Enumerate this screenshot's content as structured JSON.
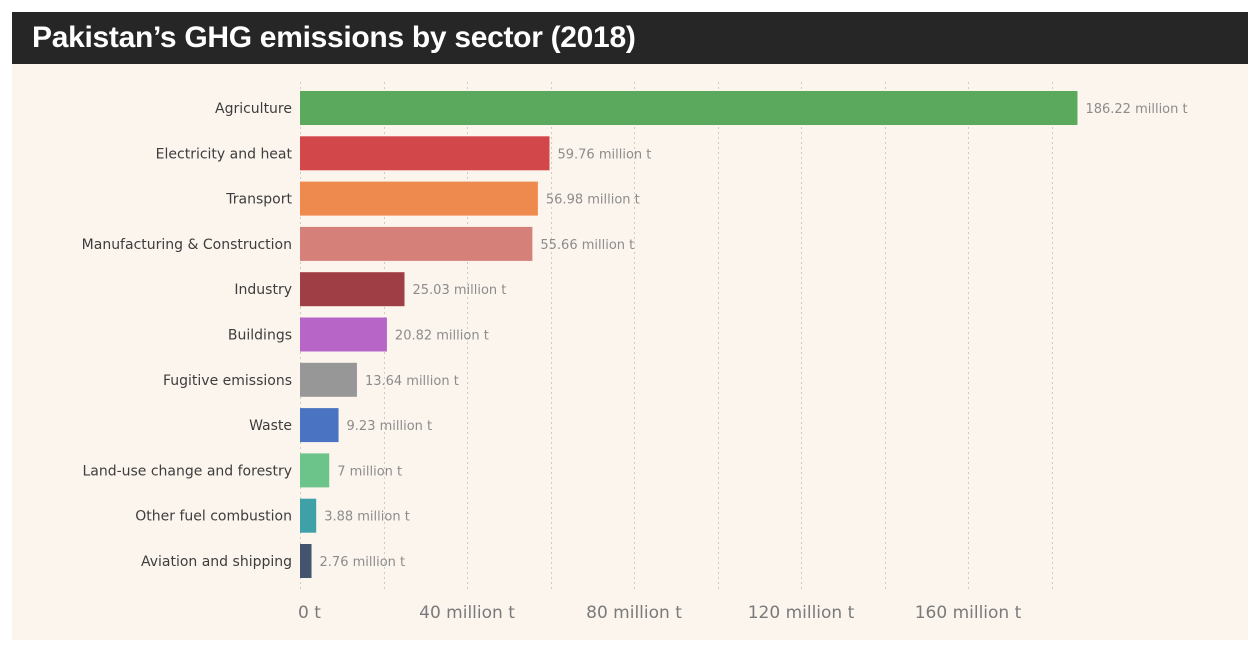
{
  "header": {
    "title": "Pakistan’s GHG emissions by sector (2018)"
  },
  "colors": {
    "title_bg": "#262626",
    "panel_bg": "#fcf5ee"
  },
  "chart_data": {
    "type": "bar",
    "orientation": "horizontal",
    "title": "Pakistan’s GHG emissions by sector (2018)",
    "xlabel": "",
    "ylabel": "",
    "unit": "million t",
    "xlim": [
      0,
      180
    ],
    "grid": true,
    "categories": [
      "Agriculture",
      "Electricity and heat",
      "Transport",
      "Manufacturing & Construction",
      "Industry",
      "Buildings",
      "Fugitive emissions",
      "Waste",
      "Land-use change and forestry",
      "Other fuel combustion",
      "Aviation and shipping"
    ],
    "values": [
      186.22,
      59.76,
      56.98,
      55.66,
      25.03,
      20.82,
      13.64,
      9.23,
      7,
      3.88,
      2.76
    ],
    "value_labels": [
      "186.22 million t",
      "59.76 million t",
      "56.98 million t",
      "55.66 million t",
      "25.03 million t",
      "20.82 million t",
      "13.64 million t",
      "9.23 million t",
      "7 million t",
      "3.88 million t",
      "2.76 million t"
    ],
    "bar_colors": [
      "#5aa95d",
      "#d2484a",
      "#ee8a4e",
      "#d6807a",
      "#a03e45",
      "#b766c8",
      "#979797",
      "#4a74c2",
      "#6cc48a",
      "#3ea1a8",
      "#44536e"
    ],
    "x_ticks": [
      {
        "value": 0,
        "label": "0 t"
      },
      {
        "value": 40,
        "label": "40 million t"
      },
      {
        "value": 80,
        "label": "80 million t"
      },
      {
        "value": 120,
        "label": "120 million t"
      },
      {
        "value": 160,
        "label": "160 million t"
      }
    ],
    "gridlines": [
      0,
      20,
      40,
      60,
      80,
      100,
      120,
      140,
      160,
      180
    ]
  }
}
